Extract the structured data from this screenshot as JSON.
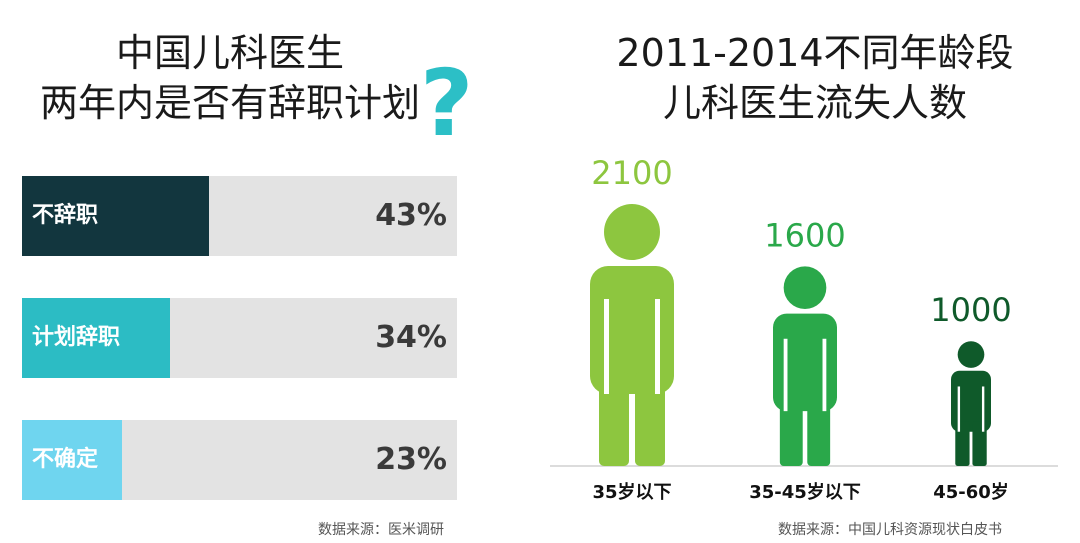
{
  "left_title": {
    "line1": "中国儿科医生",
    "line2": "两年内是否有辞职计划"
  },
  "question_glyph": "?",
  "left_source": "数据来源：医米调研",
  "right_title": {
    "line1": "2011-2014不同年龄段",
    "line2": "儿科医生流失人数"
  },
  "right_source": "数据来源：中国儿科资源现状白皮书",
  "colors": {
    "question_mark": "#2cbfc6",
    "bar_track": "#e3e3e3"
  },
  "chart_data": [
    {
      "type": "bar",
      "orientation": "horizontal",
      "categories": [
        "不辞职",
        "计划辞职",
        "不确定"
      ],
      "values": [
        43,
        34,
        23
      ],
      "value_labels": [
        "43%",
        "34%",
        "23%"
      ],
      "colors": [
        "#12363e",
        "#2cbcc4",
        "#6fd5ef"
      ],
      "xlim": [
        0,
        100
      ]
    },
    {
      "type": "bar",
      "style": "pictograph",
      "categories": [
        "35岁以下",
        "35-45岁以下",
        "45-60岁"
      ],
      "values": [
        2100,
        1600,
        1000
      ],
      "value_labels": [
        "2100",
        "1600",
        "1000"
      ],
      "colors": [
        "#8dc63f",
        "#2aa84a",
        "#0f5a2a"
      ],
      "value_label_colors": [
        "#8dc63f",
        "#2aa84a",
        "#0f5a2a"
      ],
      "ylim": [
        0,
        2100
      ]
    }
  ]
}
